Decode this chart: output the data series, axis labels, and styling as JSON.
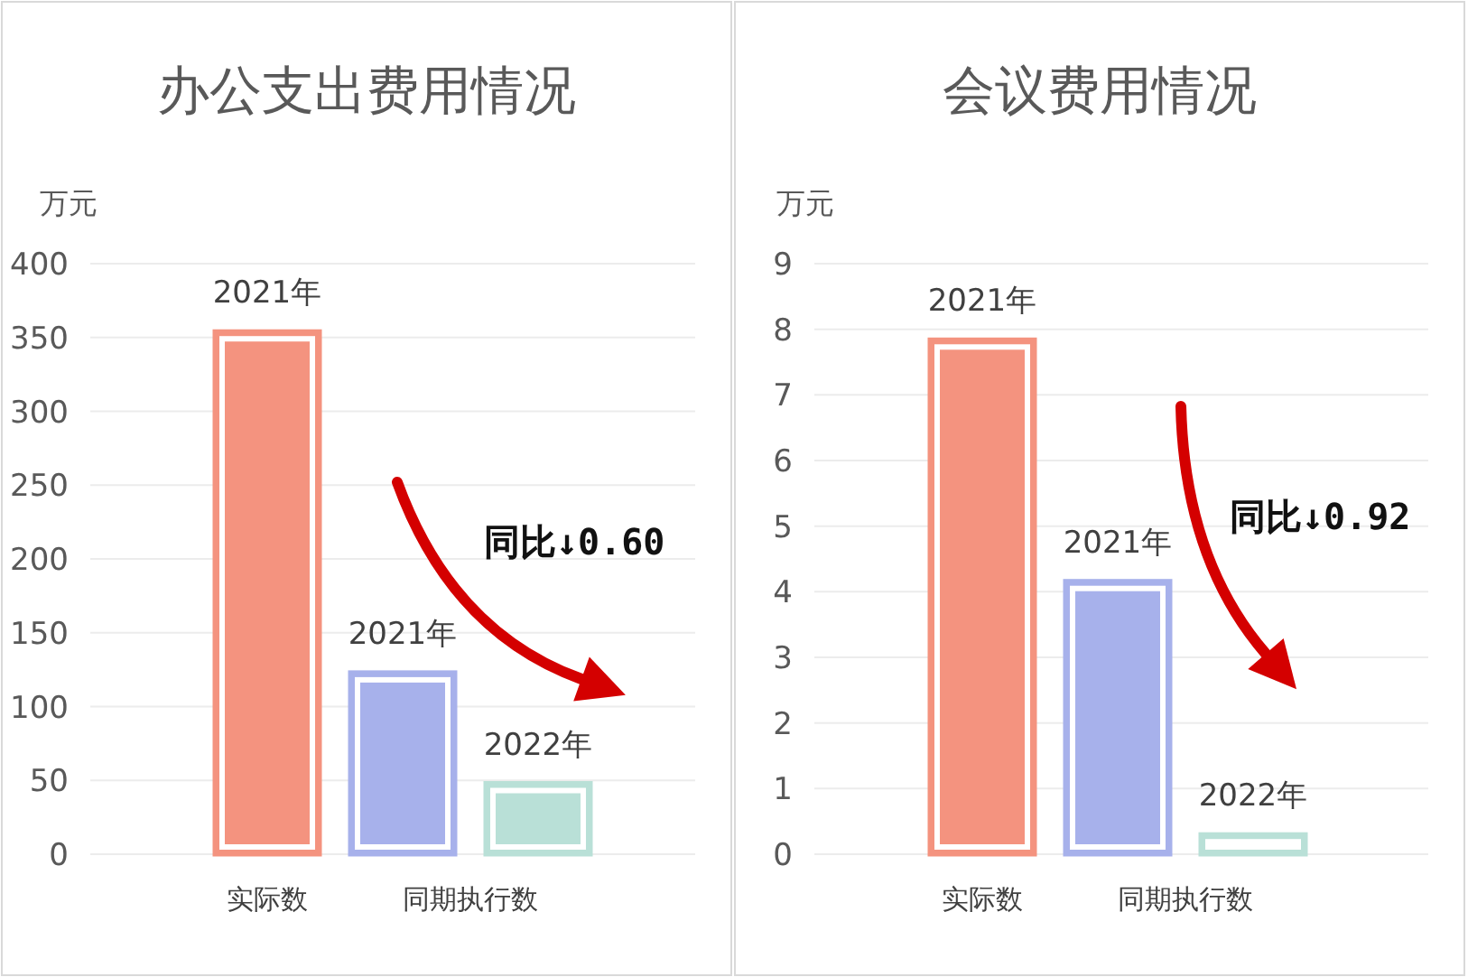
{
  "chart_data": [
    {
      "type": "bar",
      "title": "办公支出费用情况",
      "ylabel": "万元",
      "categories": [
        "实际数",
        null,
        null
      ],
      "values": [
        354,
        123,
        48
      ],
      "colors": [
        "#f4937f",
        "#a7b1eb",
        "#b9e0d7"
      ],
      "ylim": [
        0,
        400
      ],
      "yticks": [
        0,
        50,
        100,
        150,
        200,
        250,
        300,
        350,
        400
      ],
      "grid": "y",
      "annotations": [
        "同期执行数",
        "同比↓0.60",
        "2021年",
        "2021年",
        "2022年"
      ]
    },
    {
      "type": "bar",
      "title": "会议费用情况",
      "ylabel": "万元",
      "categories": [
        "实际数",
        null,
        null
      ],
      "values": [
        7.84,
        4.16,
        0.3
      ],
      "colors": [
        "#f4937f",
        "#a7b1eb",
        "#b9e0d7"
      ],
      "ylim": [
        0,
        9
      ],
      "yticks": [
        0,
        1,
        2,
        3,
        4,
        5,
        6,
        7,
        8,
        9
      ],
      "grid": "y",
      "annotations": [
        "同期执行数",
        "同比↓0.92",
        "2021年",
        "2021年",
        "2022年"
      ]
    }
  ]
}
